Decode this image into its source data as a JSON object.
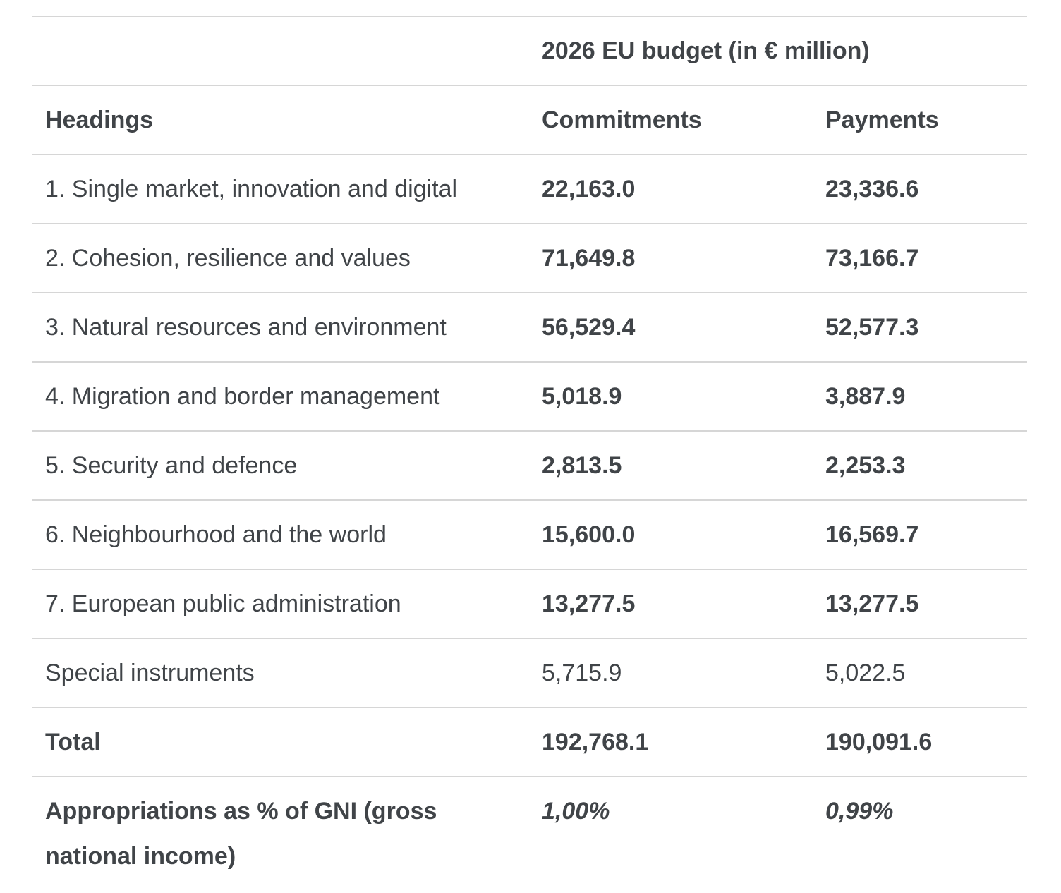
{
  "table": {
    "group_header": "2026 EU budget (in € million)",
    "headers": {
      "headings": "Headings",
      "commitments": "Commitments",
      "payments": "Payments"
    },
    "rows": [
      {
        "heading": "1. Single market, innovation and digital",
        "commitments": "22,163.0",
        "payments": "23,336.6"
      },
      {
        "heading": "2. Cohesion, resilience and values",
        "commitments": "71,649.8",
        "payments": "73,166.7"
      },
      {
        "heading": "3. Natural resources and environment",
        "commitments": "56,529.4",
        "payments": "52,577.3"
      },
      {
        "heading": "4. Migration and border management",
        "commitments": "5,018.9",
        "payments": "3,887.9"
      },
      {
        "heading": "5. Security and defence",
        "commitments": "2,813.5",
        "payments": "2,253.3"
      },
      {
        "heading": "6. Neighbourhood and the world",
        "commitments": "15,600.0",
        "payments": "16,569.7"
      },
      {
        "heading": "7. European public administration",
        "commitments": "13,277.5",
        "payments": "13,277.5"
      }
    ],
    "special": {
      "heading": "Special instruments",
      "commitments": "5,715.9",
      "payments": "5,022.5"
    },
    "total": {
      "heading": "Total",
      "commitments": "192,768.1",
      "payments": "190,091.6"
    },
    "gni": {
      "heading": "Appropriations as % of GNI (gross national income)",
      "commitments": "1,00%",
      "payments": "0,99%"
    }
  }
}
